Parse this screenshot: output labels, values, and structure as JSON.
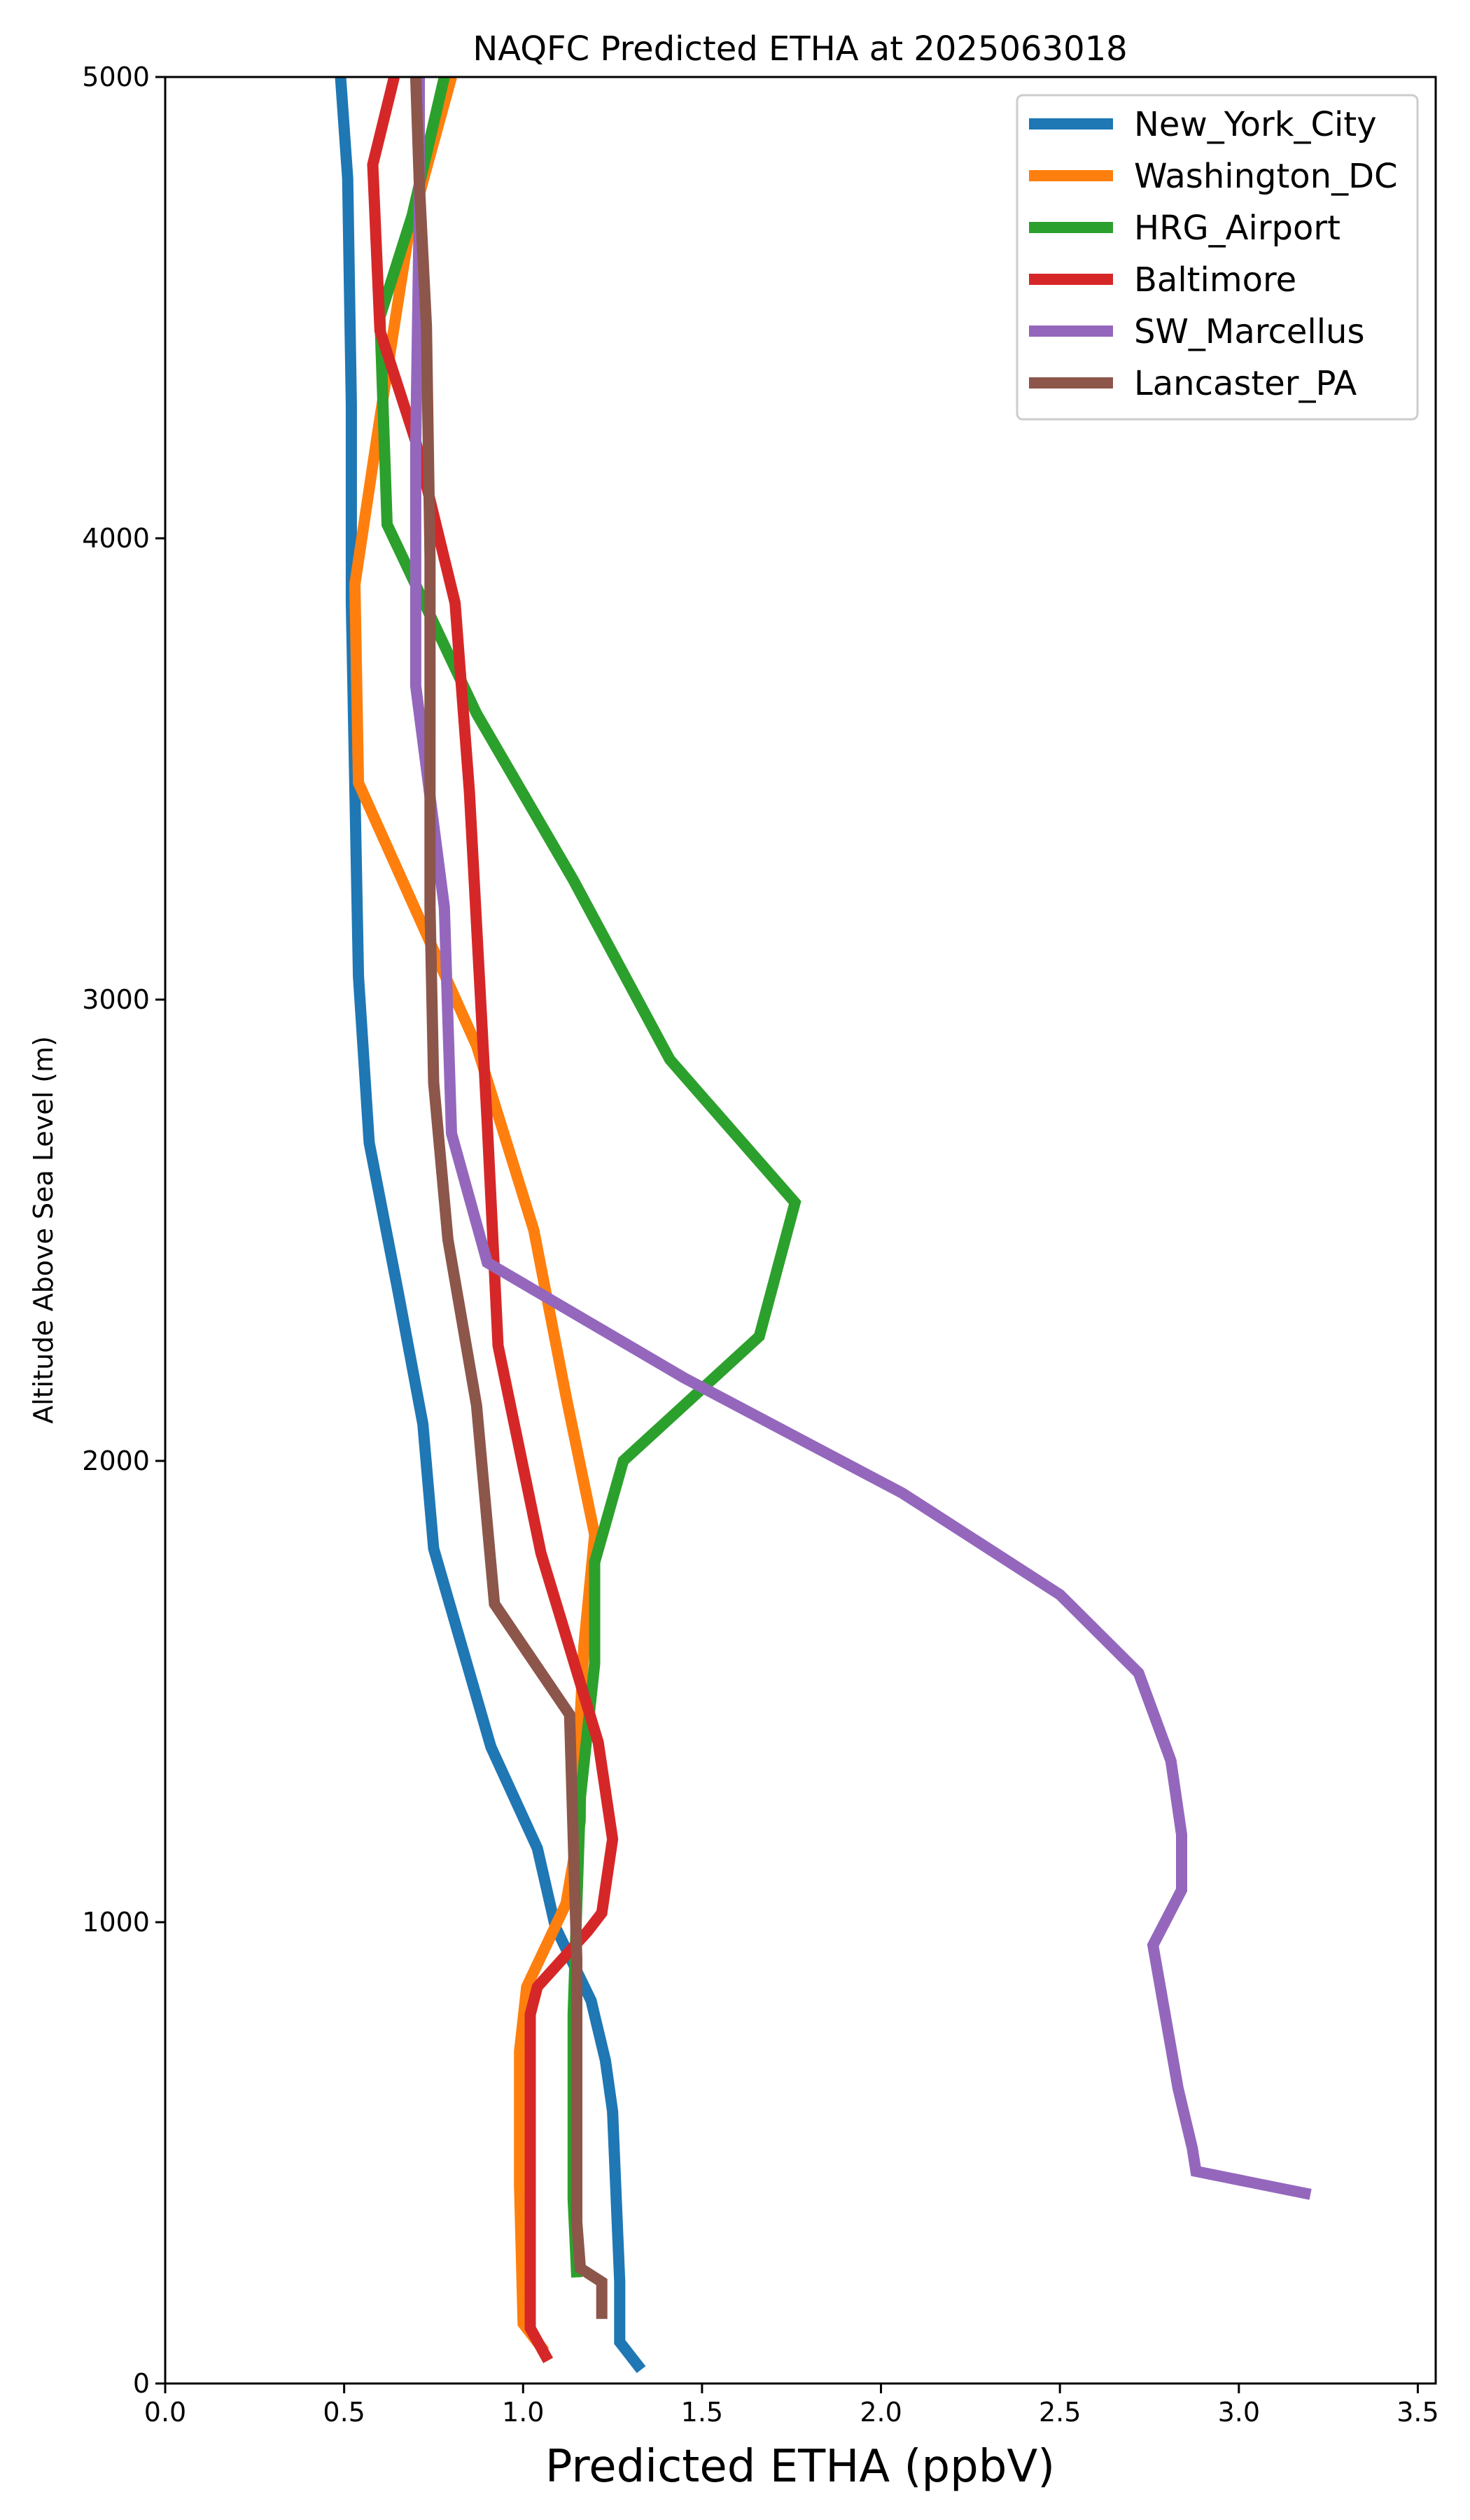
{
  "chart_data": {
    "type": "line",
    "title": "NAQFC Predicted ETHA at 2025063018",
    "xlabel": "Predicted ETHA (ppbV)",
    "ylabel": "Altitude Above Sea Level (m)",
    "xlim": [
      0,
      3.55
    ],
    "ylim": [
      0,
      5000
    ],
    "xticks": [
      "0.0",
      "0.5",
      "1.0",
      "1.5",
      "2.0",
      "2.5",
      "3.0",
      "3.5"
    ],
    "yticks": [
      "0",
      "1000",
      "2000",
      "3000",
      "4000",
      "5000"
    ],
    "grid": false,
    "legend_position": "upper right",
    "series": [
      {
        "name": "New_York_City",
        "color": "#1f77b4",
        "points": [
          [
            1.33,
            30
          ],
          [
            1.27,
            90
          ],
          [
            1.27,
            220
          ],
          [
            1.25,
            590
          ],
          [
            1.23,
            700
          ],
          [
            1.19,
            830
          ],
          [
            1.09,
            990
          ],
          [
            1.04,
            1160
          ],
          [
            0.91,
            1380
          ],
          [
            0.75,
            1810
          ],
          [
            0.72,
            2080
          ],
          [
            0.65,
            2370
          ],
          [
            0.57,
            2690
          ],
          [
            0.54,
            3050
          ],
          [
            0.52,
            3860
          ],
          [
            0.52,
            4290
          ],
          [
            0.51,
            4780
          ],
          [
            0.49,
            5000
          ]
        ]
      },
      {
        "name": "Washington_DC",
        "color": "#ff7f0e",
        "points": [
          [
            1.06,
            70
          ],
          [
            1.0,
            130
          ],
          [
            0.99,
            430
          ],
          [
            0.99,
            720
          ],
          [
            1.01,
            860
          ],
          [
            1.12,
            1040
          ],
          [
            1.16,
            1220
          ],
          [
            1.16,
            1450
          ],
          [
            1.17,
            1600
          ],
          [
            1.2,
            1840
          ],
          [
            1.12,
            2140
          ],
          [
            1.03,
            2500
          ],
          [
            0.87,
            2900
          ],
          [
            0.54,
            3470
          ],
          [
            0.53,
            3900
          ],
          [
            0.59,
            4210
          ],
          [
            0.68,
            4660
          ],
          [
            0.8,
            5000
          ]
        ]
      },
      {
        "name": "HRG_Airport",
        "color": "#2ca02c",
        "points": [
          [
            1.15,
            230
          ],
          [
            1.14,
            400
          ],
          [
            1.14,
            800
          ],
          [
            1.16,
            1270
          ],
          [
            1.2,
            1560
          ],
          [
            1.2,
            1780
          ],
          [
            1.28,
            2000
          ],
          [
            1.66,
            2270
          ],
          [
            1.76,
            2560
          ],
          [
            1.41,
            2870
          ],
          [
            1.14,
            3260
          ],
          [
            0.87,
            3620
          ],
          [
            0.62,
            4030
          ],
          [
            0.6,
            4480
          ],
          [
            0.69,
            4700
          ],
          [
            0.78,
            5000
          ]
        ]
      },
      {
        "name": "Baltimore",
        "color": "#d62728",
        "points": [
          [
            1.07,
            50
          ],
          [
            1.02,
            120
          ],
          [
            1.02,
            510
          ],
          [
            1.02,
            800
          ],
          [
            1.04,
            860
          ],
          [
            1.18,
            980
          ],
          [
            1.22,
            1020
          ],
          [
            1.25,
            1180
          ],
          [
            1.21,
            1390
          ],
          [
            1.05,
            1800
          ],
          [
            0.93,
            2250
          ],
          [
            0.9,
            2730
          ],
          [
            0.85,
            3450
          ],
          [
            0.81,
            3860
          ],
          [
            0.7,
            4210
          ],
          [
            0.6,
            4450
          ],
          [
            0.58,
            4810
          ],
          [
            0.64,
            5000
          ]
        ]
      },
      {
        "name": "SW_Marcellus",
        "color": "#9467bd",
        "points": [
          [
            3.2,
            410
          ],
          [
            2.88,
            460
          ],
          [
            2.87,
            510
          ],
          [
            2.83,
            640
          ],
          [
            2.76,
            950
          ],
          [
            2.84,
            1070
          ],
          [
            2.84,
            1190
          ],
          [
            2.81,
            1350
          ],
          [
            2.72,
            1540
          ],
          [
            2.5,
            1710
          ],
          [
            2.06,
            1930
          ],
          [
            1.45,
            2180
          ],
          [
            0.9,
            2430
          ],
          [
            0.8,
            2710
          ],
          [
            0.78,
            3200
          ],
          [
            0.7,
            3680
          ],
          [
            0.7,
            4200
          ],
          [
            0.71,
            4720
          ],
          [
            0.71,
            5000
          ]
        ]
      },
      {
        "name": "Lancaster_PA",
        "color": "#8c564b",
        "points": [
          [
            1.22,
            140
          ],
          [
            1.22,
            220
          ],
          [
            1.16,
            250
          ],
          [
            1.15,
            350
          ],
          [
            1.15,
            600
          ],
          [
            1.15,
            920
          ],
          [
            1.13,
            1450
          ],
          [
            0.92,
            1690
          ],
          [
            0.87,
            2120
          ],
          [
            0.79,
            2480
          ],
          [
            0.75,
            2820
          ],
          [
            0.74,
            3200
          ],
          [
            0.74,
            3960
          ],
          [
            0.73,
            4460
          ],
          [
            0.71,
            4770
          ],
          [
            0.7,
            5000
          ]
        ]
      }
    ]
  }
}
